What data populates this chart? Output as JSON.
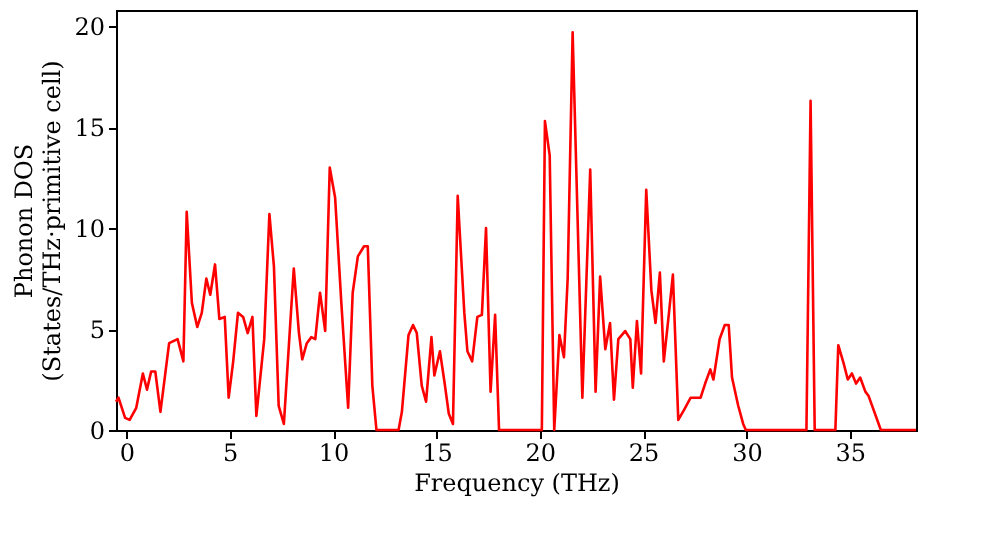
{
  "chart_data": {
    "type": "line",
    "xlabel": "Frequency (THz)",
    "ylabel": "Phonon DOS\n(States/THz·primitive cell)",
    "xlim": [
      -0.5,
      38.2
    ],
    "ylim": [
      0,
      20.8
    ],
    "xticks": [
      0,
      5,
      10,
      15,
      20,
      25,
      30,
      35
    ],
    "yticks": [
      0,
      5,
      10,
      15,
      20
    ],
    "grid": false,
    "marker": "none",
    "line_style": "solid",
    "series": [
      {
        "color": "#ff0000",
        "x": [
          -0.5,
          -0.38,
          -0.06,
          0.16,
          0.48,
          0.8,
          1.0,
          1.2,
          1.4,
          1.65,
          2.07,
          2.48,
          2.76,
          2.92,
          3.17,
          3.43,
          3.65,
          3.87,
          4.06,
          4.29,
          4.5,
          4.76,
          4.95,
          5.17,
          5.4,
          5.65,
          5.87,
          6.1,
          6.29,
          6.67,
          6.92,
          7.14,
          7.37,
          7.62,
          8.1,
          8.35,
          8.51,
          8.73,
          8.95,
          9.14,
          9.37,
          9.62,
          9.84,
          10.1,
          10.4,
          10.73,
          10.95,
          11.2,
          11.5,
          11.68,
          11.9,
          12.1,
          13.17,
          13.33,
          13.65,
          13.87,
          14.05,
          14.29,
          14.5,
          14.76,
          14.9,
          15.17,
          15.4,
          15.6,
          15.8,
          16.03,
          16.35,
          16.5,
          16.73,
          16.98,
          17.2,
          17.4,
          17.62,
          17.84,
          18.03,
          20.1,
          20.25,
          20.48,
          20.7,
          20.95,
          21.17,
          21.35,
          21.59,
          22.06,
          22.44,
          22.7,
          22.92,
          23.17,
          23.4,
          23.59,
          23.8,
          24.13,
          24.38,
          24.5,
          24.7,
          24.9,
          25.15,
          25.4,
          25.6,
          25.81,
          26.0,
          26.25,
          26.44,
          26.7,
          26.98,
          27.3,
          27.78,
          28.0,
          28.25,
          28.4,
          28.7,
          28.95,
          29.14,
          29.3,
          29.6,
          29.84,
          29.97,
          32.9,
          33.1,
          33.3,
          34.3,
          34.44,
          34.7,
          34.9,
          35.1,
          35.3,
          35.5,
          35.75,
          35.9,
          36.5,
          38.2
        ],
        "values": [
          1.4,
          1.6,
          0.6,
          0.5,
          1.1,
          2.8,
          2.0,
          2.9,
          2.9,
          0.9,
          4.3,
          4.5,
          3.4,
          10.8,
          6.3,
          5.1,
          5.8,
          7.5,
          6.7,
          8.2,
          5.5,
          5.6,
          1.6,
          3.4,
          5.8,
          5.6,
          4.8,
          5.6,
          0.7,
          4.5,
          10.7,
          8.1,
          1.2,
          0.3,
          8.0,
          4.8,
          3.5,
          4.3,
          4.6,
          4.5,
          6.8,
          4.9,
          13.0,
          11.5,
          6.3,
          1.1,
          6.8,
          8.6,
          9.1,
          9.1,
          2.2,
          0,
          0,
          0.9,
          4.7,
          5.2,
          4.8,
          2.2,
          1.4,
          4.6,
          2.7,
          3.9,
          2.3,
          0.8,
          0.3,
          11.6,
          5.8,
          3.9,
          3.4,
          5.6,
          5.7,
          10.0,
          1.9,
          5.7,
          0,
          0,
          15.3,
          13.6,
          0,
          4.7,
          3.6,
          7.5,
          19.7,
          1.6,
          12.9,
          1.9,
          7.6,
          4.0,
          5.3,
          1.5,
          4.5,
          4.9,
          4.5,
          2.1,
          5.4,
          2.8,
          11.9,
          6.9,
          5.3,
          7.8,
          3.4,
          5.8,
          7.7,
          0.5,
          1.0,
          1.6,
          1.6,
          2.3,
          3.0,
          2.5,
          4.5,
          5.2,
          5.2,
          2.6,
          1.2,
          0.3,
          0,
          0,
          16.3,
          0,
          0,
          4.2,
          3.3,
          2.5,
          2.8,
          2.3,
          2.6,
          1.9,
          1.7,
          0,
          0
        ]
      }
    ]
  }
}
